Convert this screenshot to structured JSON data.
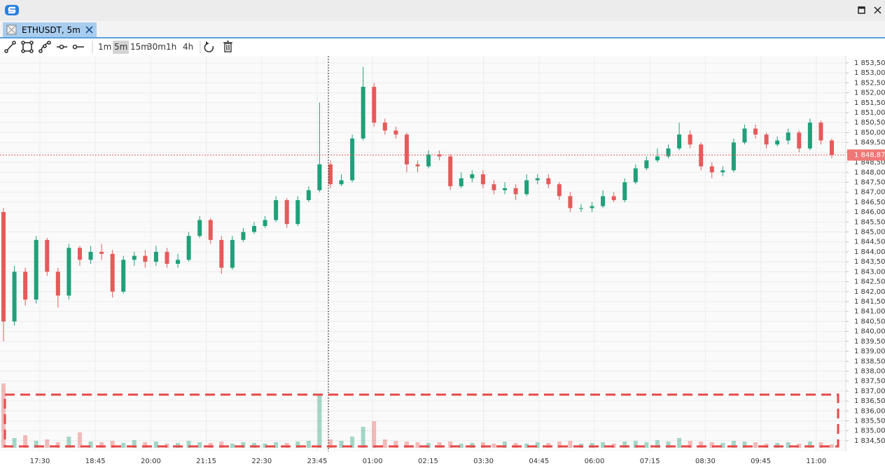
{
  "app": {
    "tab": "ETHUSDT, 5m",
    "timeframes": [
      "1m",
      "5m",
      "15m",
      "30m",
      "1h",
      "4h"
    ],
    "selected_timeframe_index": 1
  },
  "chart_data": {
    "type": "candlestick",
    "open": [
      1846.0,
      1840.5,
      1843.0,
      1841.6,
      1844.6,
      1843.0,
      1841.8,
      1844.2,
      1843.6,
      1844.0,
      1843.9,
      1842.0,
      1843.6,
      1843.8,
      1843.5,
      1844.0,
      1843.4,
      1843.6,
      1844.8,
      1845.6,
      1844.6,
      1843.2,
      1844.6,
      1845.0,
      1845.3,
      1845.6,
      1846.6,
      1845.4,
      1846.6,
      1847.1,
      1848.4,
      1847.4,
      1847.6,
      1849.7,
      1852.3,
      1850.5,
      1850.1,
      1849.9,
      1848.4,
      1848.3,
      1848.9,
      1848.8,
      1847.3,
      1847.7,
      1847.9,
      1847.4,
      1847.1,
      1847.2,
      1846.9,
      1847.6,
      1847.7,
      1847.4,
      1846.8,
      1846.2,
      1846.2,
      1846.3,
      1846.8,
      1846.6,
      1847.5,
      1848.2,
      1848.6,
      1848.8,
      1849.2,
      1849.9,
      1849.4,
      1848.3,
      1848.0,
      1848.1,
      1849.5,
      1850.2,
      1849.9,
      1849.4,
      1849.6,
      1850.0,
      1849.2,
      1850.5,
      1849.6
    ],
    "high": [
      1846.2,
      1843.3,
      1843.2,
      1844.8,
      1844.7,
      1843.2,
      1844.4,
      1844.3,
      1844.3,
      1844.4,
      1844.1,
      1843.8,
      1844.0,
      1844.1,
      1844.3,
      1844.2,
      1843.9,
      1845.0,
      1845.8,
      1845.7,
      1844.8,
      1844.8,
      1845.2,
      1845.5,
      1845.8,
      1846.8,
      1846.7,
      1846.8,
      1847.3,
      1851.5,
      1848.6,
      1847.9,
      1849.9,
      1853.3,
      1852.5,
      1850.7,
      1850.3,
      1850.0,
      1848.6,
      1849.1,
      1849.1,
      1848.9,
      1848.0,
      1848.1,
      1848.1,
      1847.6,
      1847.5,
      1847.4,
      1847.9,
      1847.9,
      1847.9,
      1847.5,
      1847.0,
      1846.4,
      1846.5,
      1847.1,
      1847.0,
      1847.7,
      1848.4,
      1848.8,
      1849.2,
      1849.4,
      1850.5,
      1850.1,
      1849.5,
      1848.5,
      1848.3,
      1849.7,
      1850.4,
      1850.4,
      1850.0,
      1849.8,
      1850.2,
      1850.1,
      1850.7,
      1850.6,
      1849.7
    ],
    "low": [
      1839.5,
      1840.3,
      1841.3,
      1841.4,
      1842.8,
      1841.2,
      1841.6,
      1843.3,
      1843.4,
      1843.6,
      1841.7,
      1841.9,
      1843.3,
      1843.2,
      1843.3,
      1843.2,
      1843.2,
      1843.5,
      1844.7,
      1844.4,
      1842.9,
      1843.1,
      1844.5,
      1844.9,
      1845.2,
      1845.5,
      1845.2,
      1845.3,
      1846.5,
      1847.0,
      1847.2,
      1847.3,
      1847.5,
      1849.6,
      1850.3,
      1849.9,
      1849.7,
      1848.0,
      1848.0,
      1848.2,
      1848.6,
      1847.1,
      1847.2,
      1847.5,
      1847.2,
      1846.9,
      1846.9,
      1846.6,
      1846.8,
      1847.4,
      1847.2,
      1846.6,
      1846.0,
      1846.0,
      1846.0,
      1846.2,
      1846.5,
      1846.5,
      1847.4,
      1848.1,
      1848.5,
      1848.7,
      1849.1,
      1849.2,
      1848.1,
      1847.7,
      1847.8,
      1848.0,
      1849.4,
      1849.7,
      1849.2,
      1849.3,
      1849.4,
      1849.0,
      1849.1,
      1849.4,
      1848.7
    ],
    "close": [
      1840.5,
      1843.0,
      1841.6,
      1844.6,
      1843.0,
      1841.8,
      1844.2,
      1843.6,
      1844.0,
      1843.9,
      1842.0,
      1843.6,
      1843.8,
      1843.5,
      1844.0,
      1843.4,
      1843.6,
      1844.8,
      1845.6,
      1844.6,
      1843.2,
      1844.6,
      1845.0,
      1845.3,
      1845.6,
      1846.6,
      1845.4,
      1846.6,
      1847.1,
      1848.4,
      1847.4,
      1847.6,
      1849.7,
      1852.3,
      1850.5,
      1850.1,
      1849.9,
      1848.4,
      1848.3,
      1848.9,
      1848.8,
      1847.3,
      1847.7,
      1847.9,
      1847.4,
      1847.1,
      1847.2,
      1846.9,
      1847.6,
      1847.7,
      1847.4,
      1846.8,
      1846.2,
      1846.2,
      1846.3,
      1846.8,
      1846.6,
      1847.5,
      1848.2,
      1848.6,
      1848.8,
      1849.2,
      1849.9,
      1849.4,
      1848.3,
      1848.0,
      1848.1,
      1849.5,
      1850.2,
      1849.9,
      1849.4,
      1849.6,
      1850.0,
      1849.2,
      1850.5,
      1849.6,
      1848.87
    ],
    "volume": [
      92,
      14,
      18,
      10,
      12,
      8,
      16,
      22,
      9,
      8,
      10,
      7,
      11,
      8,
      9,
      6,
      7,
      10,
      8,
      7,
      9,
      6,
      8,
      7,
      6,
      8,
      7,
      9,
      10,
      75,
      12,
      10,
      16,
      30,
      38,
      12,
      10,
      9,
      8,
      7,
      8,
      9,
      6,
      7,
      8,
      6,
      9,
      7,
      6,
      8,
      7,
      9,
      10,
      6,
      7,
      8,
      6,
      9,
      10,
      8,
      11,
      9,
      14,
      10,
      9,
      8,
      7,
      10,
      9,
      8,
      6,
      7,
      8,
      6,
      9,
      8,
      5
    ],
    "volume_lim": [
      0,
      100
    ],
    "up_color": "#20a07a",
    "down_color": "#e65a5a",
    "ylim": [
      1833.97,
      1853.85
    ],
    "yticks": [
      {
        "value": 1834.5,
        "label": "1 834,50"
      },
      {
        "value": 1835,
        "label": "1 835,00"
      },
      {
        "value": 1835.5,
        "label": "1 835,50"
      },
      {
        "value": 1836,
        "label": "1 836,00"
      },
      {
        "value": 1836.5,
        "label": "1 836,50"
      },
      {
        "value": 1837,
        "label": "1 837,00"
      },
      {
        "value": 1837.5,
        "label": "1 837,50"
      },
      {
        "value": 1838,
        "label": "1 838,00"
      },
      {
        "value": 1838.5,
        "label": "1 838,50"
      },
      {
        "value": 1839,
        "label": "1 839,00"
      },
      {
        "value": 1839.5,
        "label": "1 839,50"
      },
      {
        "value": 1840,
        "label": "1 840,00"
      },
      {
        "value": 1840.5,
        "label": "1 840,50"
      },
      {
        "value": 1841,
        "label": "1 841,00"
      },
      {
        "value": 1841.5,
        "label": "1 841,50"
      },
      {
        "value": 1842,
        "label": "1 842,00"
      },
      {
        "value": 1842.5,
        "label": "1 842,50"
      },
      {
        "value": 1843,
        "label": "1 843,00"
      },
      {
        "value": 1843.5,
        "label": "1 843,50"
      },
      {
        "value": 1844,
        "label": "1 844,00"
      },
      {
        "value": 1844.5,
        "label": "1 844,50"
      },
      {
        "value": 1845,
        "label": "1 845,00"
      },
      {
        "value": 1845.5,
        "label": "1 845,50"
      },
      {
        "value": 1846,
        "label": "1 846,00"
      },
      {
        "value": 1846.5,
        "label": "1 846,50"
      },
      {
        "value": 1847,
        "label": "1 847,00"
      },
      {
        "value": 1847.5,
        "label": "1 847,50"
      },
      {
        "value": 1848,
        "label": "1 848,00"
      },
      {
        "value": 1848.5,
        "label": "1 848,50"
      },
      {
        "value": 1849,
        "label": "1 849,00"
      },
      {
        "value": 1849.5,
        "label": "1 849,50"
      },
      {
        "value": 1850,
        "label": "1 850,00"
      },
      {
        "value": 1850.5,
        "label": "1 850,50"
      },
      {
        "value": 1851,
        "label": "1 851,00"
      },
      {
        "value": 1851.5,
        "label": "1 851,50"
      },
      {
        "value": 1852,
        "label": "1 852,00"
      },
      {
        "value": 1852.5,
        "label": "1 852,50"
      },
      {
        "value": 1853,
        "label": "1 853,00"
      },
      {
        "value": 1853.5,
        "label": "1 853,50"
      }
    ],
    "x_labels": [
      "17:30",
      "18:45",
      "20:00",
      "21:15",
      "22:30",
      "23:45",
      "01:00",
      "02:15",
      "03:30",
      "04:45",
      "06:00",
      "07:15",
      "08:30",
      "09:45",
      "11:00"
    ],
    "last_price": {
      "value": 1848.87,
      "label": "1 848,87"
    },
    "grid": true
  }
}
